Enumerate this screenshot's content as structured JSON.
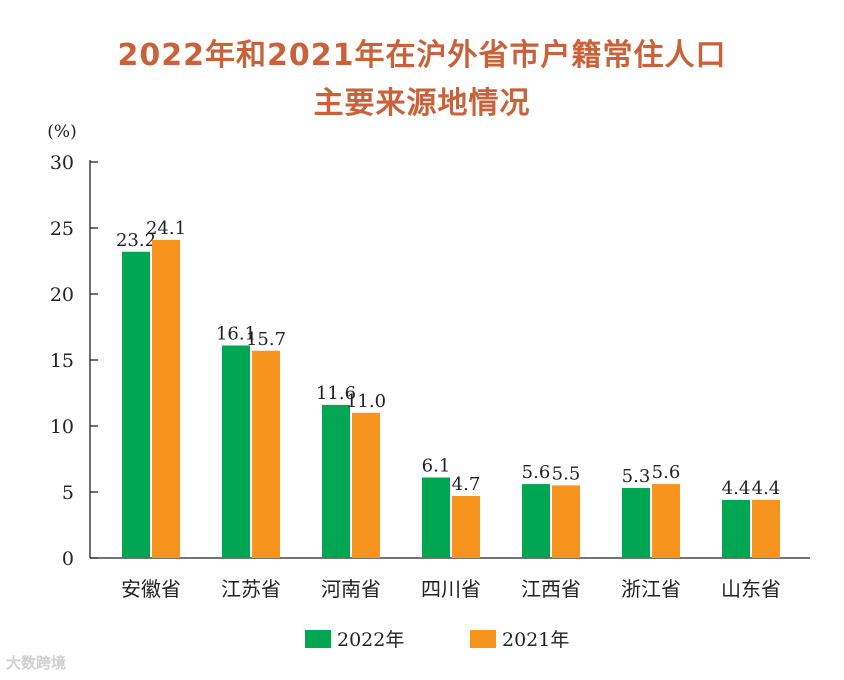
{
  "chart_data": {
    "type": "bar",
    "title_line1": "2022年和2021年在沪外省市户籍常住人口",
    "title_line2": "主要来源地情况",
    "ylabel": "(%)",
    "xlabel": "",
    "ylim": [
      0,
      30
    ],
    "yticks": [
      "0",
      "5",
      "10",
      "15",
      "20",
      "25",
      "30"
    ],
    "categories": [
      "安徽省",
      "江苏省",
      "河南省",
      "四川省",
      "江西省",
      "浙江省",
      "山东省"
    ],
    "series": [
      {
        "name": "2022年",
        "color": "#00a651",
        "values": [
          23.2,
          16.1,
          11.6,
          6.1,
          5.6,
          5.3,
          4.4
        ],
        "labels": [
          "23.2",
          "16.1",
          "11.6",
          "6.1",
          "5.6",
          "5.3",
          "4.4"
        ]
      },
      {
        "name": "2021年",
        "color": "#f7941d",
        "values": [
          24.1,
          15.7,
          11.0,
          4.7,
          5.5,
          5.6,
          4.4
        ],
        "labels": [
          "24.1",
          "15.7",
          "11.0",
          "4.7",
          "5.5",
          "5.6",
          "4.4"
        ]
      }
    ],
    "legend_position": "bottom",
    "grid": false
  },
  "watermark": "大数跨境"
}
